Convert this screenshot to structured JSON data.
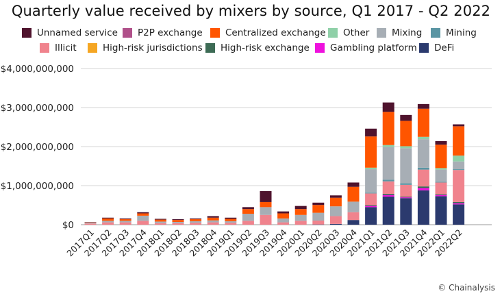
{
  "chart_data": {
    "type": "bar",
    "stacked": true,
    "title": "Quarterly value received by mixers by source, Q1 2017 - Q2 2022",
    "xlabel": "",
    "ylabel": "",
    "ylim": [
      0,
      4000000000
    ],
    "yticks": [
      0,
      1000000000,
      2000000000,
      3000000000,
      4000000000
    ],
    "ytick_labels": [
      "$0",
      "$1,000,000,000",
      "$2,000,000,000",
      "$3,000,000,000",
      "$4,000,000,000"
    ],
    "grid": true,
    "legend_position": "top",
    "categories": [
      "2017Q1",
      "2017Q2",
      "2017Q3",
      "2017Q4",
      "2018Q1",
      "2018Q2",
      "2018Q3",
      "2018Q4",
      "2019Q1",
      "2019Q2",
      "2019Q3",
      "2019Q4",
      "2020Q1",
      "2020Q2",
      "2020Q3",
      "2020Q4",
      "2021Q1",
      "2021Q2",
      "2021Q3",
      "2021Q4",
      "2022Q1",
      "2022Q2"
    ],
    "series": [
      {
        "name": "DeFi",
        "color": "#2b3a6e",
        "values": [
          0,
          0,
          0,
          0,
          0,
          0,
          0,
          0,
          0,
          0,
          0,
          0,
          0,
          5000000,
          20000000,
          120000000,
          450000000,
          720000000,
          680000000,
          880000000,
          730000000,
          520000000
        ]
      },
      {
        "name": "Gambling platform",
        "color": "#ee11dd",
        "values": [
          0,
          0,
          0,
          0,
          0,
          0,
          0,
          0,
          0,
          0,
          0,
          0,
          0,
          0,
          0,
          0,
          30000000,
          40000000,
          20000000,
          60000000,
          30000000,
          30000000
        ]
      },
      {
        "name": "High-risk exchange",
        "color": "#3d6b55",
        "values": [
          0,
          0,
          0,
          0,
          0,
          0,
          0,
          0,
          0,
          0,
          0,
          0,
          0,
          0,
          0,
          0,
          20000000,
          30000000,
          20000000,
          40000000,
          20000000,
          30000000
        ]
      },
      {
        "name": "High-risk jurisdictions",
        "color": "#f5a623",
        "values": [
          0,
          0,
          0,
          0,
          0,
          0,
          0,
          0,
          0,
          0,
          0,
          0,
          0,
          0,
          0,
          0,
          0,
          0,
          0,
          0,
          0,
          0
        ]
      },
      {
        "name": "Illicit",
        "color": "#f0838d",
        "values": [
          30000000,
          60000000,
          60000000,
          100000000,
          40000000,
          40000000,
          50000000,
          60000000,
          50000000,
          100000000,
          250000000,
          60000000,
          100000000,
          100000000,
          200000000,
          200000000,
          300000000,
          320000000,
          300000000,
          430000000,
          300000000,
          820000000
        ]
      },
      {
        "name": "Mining",
        "color": "#5a95a3",
        "values": [
          0,
          0,
          0,
          0,
          0,
          0,
          0,
          0,
          0,
          0,
          0,
          0,
          0,
          0,
          0,
          0,
          20000000,
          40000000,
          40000000,
          50000000,
          20000000,
          20000000
        ]
      },
      {
        "name": "Mixing",
        "color": "#a7aeb5",
        "values": [
          20000000,
          40000000,
          40000000,
          130000000,
          40000000,
          30000000,
          40000000,
          50000000,
          40000000,
          180000000,
          200000000,
          100000000,
          150000000,
          200000000,
          250000000,
          270000000,
          600000000,
          840000000,
          900000000,
          730000000,
          310000000,
          200000000
        ]
      },
      {
        "name": "Other",
        "color": "#8fd0a8",
        "values": [
          0,
          0,
          0,
          0,
          0,
          0,
          0,
          0,
          0,
          0,
          0,
          0,
          0,
          0,
          0,
          0,
          40000000,
          50000000,
          50000000,
          60000000,
          40000000,
          150000000
        ]
      },
      {
        "name": "Centralized exchange",
        "color": "#ff5500",
        "values": [
          10000000,
          60000000,
          40000000,
          60000000,
          50000000,
          50000000,
          50000000,
          70000000,
          60000000,
          120000000,
          130000000,
          130000000,
          150000000,
          200000000,
          220000000,
          380000000,
          800000000,
          850000000,
          650000000,
          720000000,
          600000000,
          750000000
        ]
      },
      {
        "name": "P2P exchange",
        "color": "#b0508a",
        "values": [
          0,
          0,
          0,
          0,
          0,
          0,
          0,
          0,
          0,
          0,
          0,
          0,
          0,
          0,
          0,
          0,
          0,
          0,
          0,
          0,
          0,
          0
        ]
      },
      {
        "name": "Unnamed service",
        "color": "#4f132d",
        "values": [
          5000000,
          20000000,
          20000000,
          30000000,
          20000000,
          20000000,
          20000000,
          40000000,
          30000000,
          50000000,
          280000000,
          50000000,
          80000000,
          60000000,
          60000000,
          110000000,
          200000000,
          240000000,
          150000000,
          120000000,
          90000000,
          50000000
        ]
      }
    ]
  },
  "legend": [
    {
      "name": "Unnamed service",
      "color": "#4f132d"
    },
    {
      "name": "P2P exchange",
      "color": "#b0508a"
    },
    {
      "name": "Centralized exchange",
      "color": "#ff5500"
    },
    {
      "name": "Other",
      "color": "#8fd0a8"
    },
    {
      "name": "Mixing",
      "color": "#a7aeb5"
    },
    {
      "name": "Mining",
      "color": "#5a95a3"
    },
    {
      "name": "Illicit",
      "color": "#f0838d"
    },
    {
      "name": "High-risk jurisdictions",
      "color": "#f5a623"
    },
    {
      "name": "High-risk exchange",
      "color": "#3d6b55"
    },
    {
      "name": "Gambling platform",
      "color": "#ee11dd"
    },
    {
      "name": "DeFi",
      "color": "#2b3a6e"
    }
  ],
  "credit": "© Chainalysis"
}
